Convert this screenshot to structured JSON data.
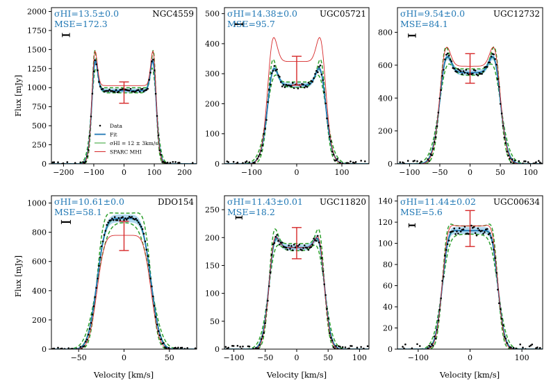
{
  "figure": {
    "xlabel": "Velocity [km/s]",
    "ylabel": "Flux [mJy]"
  },
  "legend": {
    "items": [
      {
        "key": "data",
        "label": "Data",
        "color": "#000000"
      },
      {
        "key": "fit",
        "label": "Fit",
        "color": "#1f77b4"
      },
      {
        "key": "sigma12",
        "label": "σHI = 12 ± 3km/s",
        "color": "#2ca02c"
      },
      {
        "key": "sparc",
        "label": "SPARC MHI",
        "color": "#d62728"
      }
    ]
  },
  "colors": {
    "data": "#000000",
    "fit": "#1f77b4",
    "band": "#8fc7e8",
    "green": "#2ca02c",
    "sparc": "#d62728"
  },
  "chart_data": [
    {
      "type": "line",
      "name": "NGC4559",
      "sigma_text": "σHI=13.5±0.0",
      "mse_text": "MSE=172.3",
      "xlim": [
        -240,
        240
      ],
      "ylim": [
        0,
        2050
      ],
      "xticks": [
        -200,
        -100,
        0,
        100,
        200
      ],
      "xtick_labels": [
        "−200",
        "−100",
        "0",
        "100",
        "200"
      ],
      "yticks": [
        0,
        250,
        500,
        750,
        1000,
        1250,
        1500,
        1750,
        2000
      ],
      "ytick_labels": [
        "0",
        "250",
        "500",
        "750",
        "1000",
        "1250",
        "1500",
        "1750",
        "2000"
      ],
      "vpeak": 100,
      "wedge": 12,
      "peak": 1660,
      "trough": 960,
      "sparc_scale": 1.07,
      "noise": 25,
      "res_bar_halfwidth": 12,
      "res_bar_y": 1690,
      "errorbar": {
        "x": 0,
        "y": 935,
        "err": 140
      },
      "show_legend": true
    },
    {
      "type": "line",
      "name": "UGC05721",
      "sigma_text": "σHI=14.38±0.0",
      "mse_text": "MSE=95.7",
      "xlim": [
        -160,
        160
      ],
      "ylim": [
        0,
        520
      ],
      "xticks": [
        -100,
        0,
        100
      ],
      "xtick_labels": [
        "−100",
        "0",
        "100"
      ],
      "yticks": [
        0,
        100,
        200,
        300,
        400,
        500
      ],
      "ytick_labels": [
        "0",
        "100",
        "200",
        "300",
        "400",
        "500"
      ],
      "vpeak": 57,
      "wedge": 14,
      "peak": 385,
      "trough": 262,
      "sparc_scale": 1.3,
      "noise": 12,
      "res_bar_halfwidth": 9,
      "res_bar_y": 465,
      "errorbar": {
        "x": 0,
        "y": 310,
        "err": 48
      },
      "show_legend": false
    },
    {
      "type": "line",
      "name": "UGC12732",
      "sigma_text": "σHI=9.54±0.0",
      "mse_text": "MSE=84.1",
      "xlim": [
        -120,
        120
      ],
      "ylim": [
        0,
        950
      ],
      "xticks": [
        -100,
        -50,
        0,
        50,
        100
      ],
      "xtick_labels": [
        "−100",
        "−50",
        "0",
        "50",
        "100"
      ],
      "yticks": [
        0,
        200,
        400,
        600,
        800
      ],
      "ytick_labels": [
        "0",
        "200",
        "400",
        "600",
        "800"
      ],
      "vpeak": 44,
      "wedge": 11,
      "peak": 780,
      "trough": 555,
      "sparc_scale": 1.07,
      "noise": 20,
      "res_bar_halfwidth": 6,
      "res_bar_y": 780,
      "errorbar": {
        "x": 0,
        "y": 580,
        "err": 90
      },
      "show_legend": false
    },
    {
      "type": "line",
      "name": "DDO154",
      "sigma_text": "σHI=10.61±0.0",
      "mse_text": "MSE=58.1",
      "xlim": [
        -80,
        80
      ],
      "ylim": [
        0,
        1050
      ],
      "xticks": [
        -50,
        0,
        50
      ],
      "xtick_labels": [
        "−50",
        "0",
        "50"
      ],
      "yticks": [
        0,
        200,
        400,
        600,
        800,
        1000
      ],
      "ytick_labels": [
        "0",
        "200",
        "400",
        "600",
        "800",
        "1000"
      ],
      "vpeak": 25,
      "wedge": 8,
      "peak": 925,
      "trough": 895,
      "sparc_scale": 0.87,
      "noise": 12,
      "res_bar_halfwidth": 5,
      "res_bar_y": 870,
      "errorbar": {
        "x": 0,
        "y": 775,
        "err": 100
      },
      "show_legend": false
    },
    {
      "type": "line",
      "name": "UGC11820",
      "sigma_text": "σHI=11.43±0.01",
      "mse_text": "MSE=18.2",
      "xlim": [
        -115,
        115
      ],
      "ylim": [
        0,
        275
      ],
      "xticks": [
        -100,
        -50,
        0,
        50,
        100
      ],
      "xtick_labels": [
        "−100",
        "−50",
        "0",
        "50",
        "100"
      ],
      "yticks": [
        0,
        50,
        100,
        150,
        200,
        250
      ],
      "ytick_labels": [
        "0",
        "50",
        "100",
        "150",
        "200",
        "250"
      ],
      "vpeak": 39,
      "wedge": 9,
      "peak": 232,
      "trough": 182,
      "sparc_scale": 1.0,
      "noise": 6,
      "res_bar_halfwidth": 5,
      "res_bar_y": 236,
      "errorbar": {
        "x": 0,
        "y": 190,
        "err": 28
      },
      "show_legend": false
    },
    {
      "type": "line",
      "name": "UGC00634",
      "sigma_text": "σHI=11.44±0.02",
      "mse_text": "MSE=5.6",
      "xlim": [
        -140,
        140
      ],
      "ylim": [
        0,
        145
      ],
      "xticks": [
        -100,
        0,
        100
      ],
      "xtick_labels": [
        "−100",
        "0",
        "100"
      ],
      "yticks": [
        0,
        20,
        40,
        60,
        80,
        100,
        120,
        140
      ],
      "ytick_labels": [
        "0",
        "20",
        "40",
        "60",
        "80",
        "100",
        "120",
        "140"
      ],
      "vpeak": 47,
      "wedge": 11,
      "peak": 122,
      "trough": 112,
      "sparc_scale": 1.04,
      "noise": 5,
      "res_bar_halfwidth": 6,
      "res_bar_y": 117,
      "errorbar": {
        "x": 0,
        "y": 114,
        "err": 17
      },
      "show_legend": false
    }
  ]
}
